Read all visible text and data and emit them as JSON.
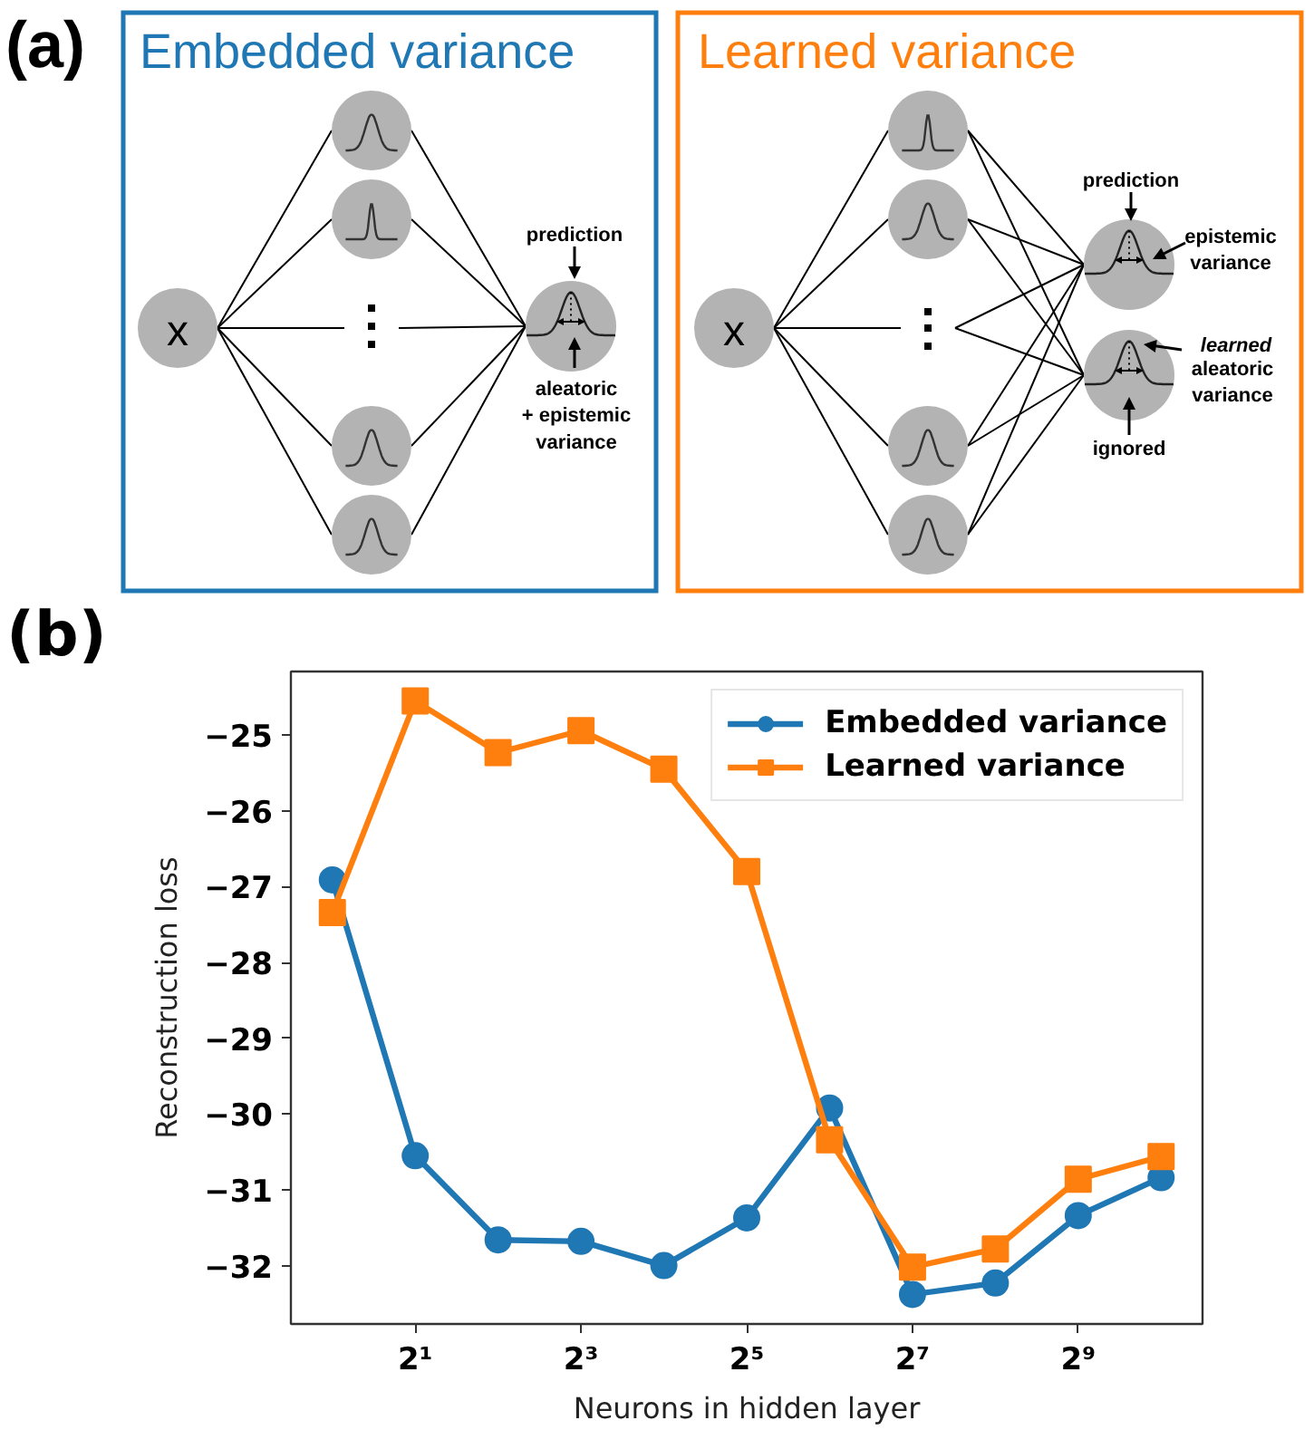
{
  "chart_data": [
    {
      "type": "other",
      "title": "Embedded variance",
      "annotations": [
        "(a)",
        "x",
        "prediction",
        "aleatoric\n+ epistemic\nvariance"
      ]
    },
    {
      "type": "other",
      "title": "Learned variance",
      "annotations": [
        "x",
        "prediction",
        "epistemic\nvariance",
        "learned",
        "aleatoric\nvariance",
        "ignored"
      ]
    },
    {
      "type": "line",
      "title": "(b)",
      "xlabel": "Neurons in hidden layer",
      "ylabel": "Reconstruction loss",
      "x": [
        1,
        2,
        4,
        8,
        16,
        32,
        64,
        128,
        256,
        512,
        1024
      ],
      "log": "x",
      "xlim": [
        0.707,
        1448
      ],
      "xticks": [
        {
          "value": 2,
          "label": "2¹"
        },
        {
          "value": 8,
          "label": "2³"
        },
        {
          "value": 32,
          "label": "2⁵"
        },
        {
          "value": 128,
          "label": "2⁷"
        },
        {
          "value": 512,
          "label": "2⁹"
        }
      ],
      "ylim": [
        -32.77,
        -24.16
      ],
      "yticks": [
        {
          "value": -25,
          "label": "−25"
        },
        {
          "value": -26,
          "label": "−26"
        },
        {
          "value": -27,
          "label": "−27"
        },
        {
          "value": -28,
          "label": "−28"
        },
        {
          "value": -29,
          "label": "−29"
        },
        {
          "value": -30,
          "label": "−30"
        },
        {
          "value": -31,
          "label": "−31"
        },
        {
          "value": -32,
          "label": "−32"
        }
      ],
      "grid": false,
      "legend": "top right",
      "series": [
        {
          "name": "Embedded variance",
          "color": "#1f77b4",
          "marker": "circle",
          "values": [
            -26.91,
            -30.55,
            -31.66,
            -31.68,
            -32.0,
            -31.37,
            -29.92,
            -32.38,
            -32.23,
            -31.34,
            -30.84
          ]
        },
        {
          "name": "Learned variance",
          "color": "#ff7f0e",
          "marker": "square",
          "values": [
            -27.34,
            -24.55,
            -25.23,
            -24.94,
            -25.45,
            -26.8,
            -30.34,
            -32.02,
            -31.78,
            -30.86,
            -30.56
          ]
        }
      ]
    }
  ]
}
